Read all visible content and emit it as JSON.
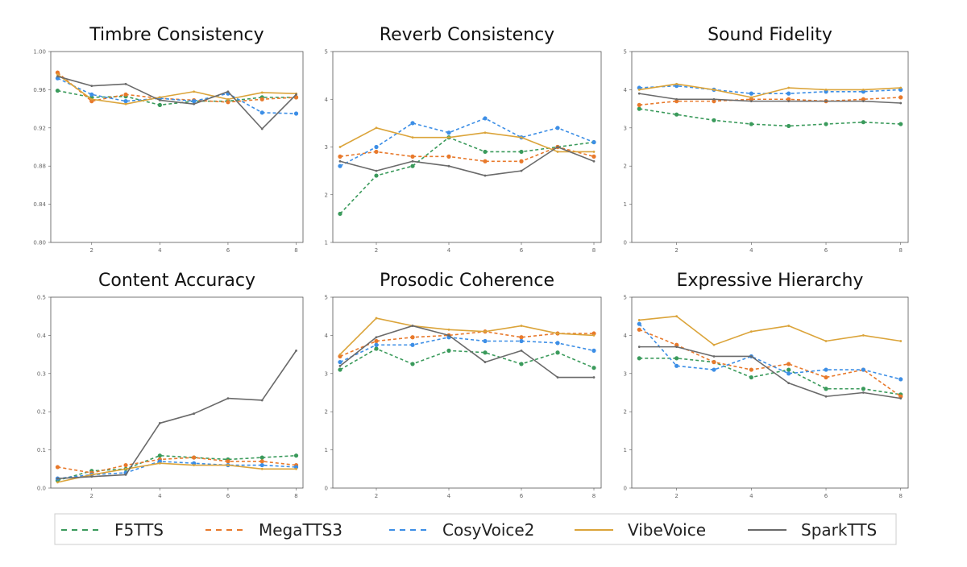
{
  "chart_data": [
    {
      "type": "line",
      "title": "Timbre Consistency",
      "ylim": [
        0.8,
        1.0
      ],
      "yticks": [
        "0.80",
        "0.84",
        "0.88",
        "0.92",
        "0.96",
        "1.00"
      ],
      "xlim": [
        0.8,
        8.2
      ],
      "xticks": [
        2,
        4,
        6,
        8
      ],
      "x": [
        1,
        2,
        3,
        4,
        5,
        6,
        7,
        8
      ],
      "series": [
        {
          "name": "F5TTS",
          "values": [
            0.959,
            0.952,
            0.953,
            0.944,
            0.948,
            0.948,
            0.952,
            0.952
          ]
        },
        {
          "name": "MegaTTS3",
          "values": [
            0.978,
            0.948,
            0.955,
            0.951,
            0.949,
            0.947,
            0.95,
            0.952
          ]
        },
        {
          "name": "CosyVoice2",
          "values": [
            0.972,
            0.955,
            0.948,
            0.951,
            0.948,
            0.956,
            0.936,
            0.935
          ]
        },
        {
          "name": "VibeVoice",
          "values": [
            0.976,
            0.95,
            0.945,
            0.952,
            0.958,
            0.95,
            0.957,
            0.956
          ]
        },
        {
          "name": "SparkTTS",
          "values": [
            0.974,
            0.964,
            0.966,
            0.949,
            0.945,
            0.958,
            0.919,
            0.955
          ]
        }
      ]
    },
    {
      "type": "line",
      "title": "Reverb Consistency",
      "ylim": [
        1,
        5
      ],
      "yticks": [
        "1",
        "2",
        "3",
        "4",
        "5"
      ],
      "xlim": [
        0.8,
        8.2
      ],
      "xticks": [
        2,
        4,
        6,
        8
      ],
      "x": [
        1,
        2,
        3,
        4,
        5,
        6,
        7,
        8
      ],
      "series": [
        {
          "name": "F5TTS",
          "values": [
            1.6,
            2.4,
            2.6,
            3.2,
            2.9,
            2.9,
            3.0,
            3.1
          ]
        },
        {
          "name": "MegaTTS3",
          "values": [
            2.8,
            2.9,
            2.8,
            2.8,
            2.7,
            2.7,
            3.0,
            2.8
          ]
        },
        {
          "name": "CosyVoice2",
          "values": [
            2.6,
            3.0,
            3.5,
            3.3,
            3.6,
            3.2,
            3.4,
            3.1
          ]
        },
        {
          "name": "VibeVoice",
          "values": [
            3.0,
            3.4,
            3.2,
            3.2,
            3.3,
            3.2,
            2.9,
            2.9
          ]
        },
        {
          "name": "SparkTTS",
          "values": [
            2.7,
            2.5,
            2.7,
            2.6,
            2.4,
            2.5,
            3.0,
            2.7
          ]
        }
      ]
    },
    {
      "type": "line",
      "title": "Sound Fidelity",
      "ylim": [
        0,
        5
      ],
      "yticks": [
        "0",
        "1",
        "2",
        "3",
        "4",
        "5"
      ],
      "xlim": [
        0.8,
        8.2
      ],
      "xticks": [
        2,
        4,
        6,
        8
      ],
      "x": [
        1,
        2,
        3,
        4,
        5,
        6,
        7,
        8
      ],
      "series": [
        {
          "name": "F5TTS",
          "values": [
            3.5,
            3.35,
            3.2,
            3.1,
            3.05,
            3.1,
            3.15,
            3.1
          ]
        },
        {
          "name": "MegaTTS3",
          "values": [
            3.6,
            3.7,
            3.7,
            3.75,
            3.75,
            3.7,
            3.75,
            3.8
          ]
        },
        {
          "name": "CosyVoice2",
          "values": [
            4.05,
            4.1,
            4.0,
            3.9,
            3.9,
            3.95,
            3.95,
            4.0
          ]
        },
        {
          "name": "VibeVoice",
          "values": [
            4.0,
            4.15,
            4.0,
            3.8,
            4.05,
            4.0,
            4.0,
            4.05
          ]
        },
        {
          "name": "SparkTTS",
          "values": [
            3.9,
            3.75,
            3.75,
            3.7,
            3.7,
            3.7,
            3.7,
            3.65
          ]
        }
      ]
    },
    {
      "type": "line",
      "title": "Content Accuracy",
      "ylim": [
        0.0,
        0.5
      ],
      "yticks": [
        "0.0",
        "0.1",
        "0.2",
        "0.3",
        "0.4",
        "0.5"
      ],
      "xlim": [
        0.8,
        8.2
      ],
      "xticks": [
        2,
        4,
        6,
        8
      ],
      "x": [
        1,
        2,
        3,
        4,
        5,
        6,
        7,
        8
      ],
      "series": [
        {
          "name": "F5TTS",
          "values": [
            0.02,
            0.045,
            0.05,
            0.085,
            0.08,
            0.075,
            0.08,
            0.085
          ]
        },
        {
          "name": "MegaTTS3",
          "values": [
            0.055,
            0.04,
            0.06,
            0.075,
            0.08,
            0.07,
            0.07,
            0.06
          ]
        },
        {
          "name": "CosyVoice2",
          "values": [
            0.025,
            0.035,
            0.04,
            0.07,
            0.065,
            0.06,
            0.06,
            0.055
          ]
        },
        {
          "name": "VibeVoice",
          "values": [
            0.015,
            0.035,
            0.05,
            0.065,
            0.06,
            0.06,
            0.05,
            0.05
          ]
        },
        {
          "name": "SparkTTS",
          "values": [
            0.025,
            0.03,
            0.035,
            0.17,
            0.195,
            0.235,
            0.23,
            0.36
          ]
        }
      ]
    },
    {
      "type": "line",
      "title": "Prosodic Coherence",
      "ylim": [
        0,
        5
      ],
      "yticks": [
        "0",
        "1",
        "2",
        "3",
        "4",
        "5"
      ],
      "xlim": [
        0.8,
        8.2
      ],
      "xticks": [
        2,
        4,
        6,
        8
      ],
      "x": [
        1,
        2,
        3,
        4,
        5,
        6,
        7,
        8
      ],
      "series": [
        {
          "name": "F5TTS",
          "values": [
            3.1,
            3.65,
            3.25,
            3.6,
            3.55,
            3.25,
            3.55,
            3.15
          ]
        },
        {
          "name": "MegaTTS3",
          "values": [
            3.45,
            3.85,
            3.95,
            4.0,
            4.1,
            3.95,
            4.05,
            4.05
          ]
        },
        {
          "name": "CosyVoice2",
          "values": [
            3.3,
            3.75,
            3.75,
            3.95,
            3.85,
            3.85,
            3.8,
            3.6
          ]
        },
        {
          "name": "VibeVoice",
          "values": [
            3.5,
            4.45,
            4.25,
            4.15,
            4.1,
            4.25,
            4.05,
            4.0
          ]
        },
        {
          "name": "SparkTTS",
          "values": [
            3.2,
            3.95,
            4.25,
            4.0,
            3.3,
            3.6,
            2.9,
            2.9
          ]
        }
      ]
    },
    {
      "type": "line",
      "title": "Expressive Hierarchy",
      "ylim": [
        0,
        5
      ],
      "yticks": [
        "0",
        "1",
        "2",
        "3",
        "4",
        "5"
      ],
      "xlim": [
        0.8,
        8.2
      ],
      "xticks": [
        2,
        4,
        6,
        8
      ],
      "x": [
        1,
        2,
        3,
        4,
        5,
        6,
        7,
        8
      ],
      "series": [
        {
          "name": "F5TTS",
          "values": [
            3.4,
            3.4,
            3.3,
            2.9,
            3.1,
            2.6,
            2.6,
            2.45
          ]
        },
        {
          "name": "MegaTTS3",
          "values": [
            4.15,
            3.75,
            3.3,
            3.1,
            3.25,
            2.9,
            3.1,
            2.4
          ]
        },
        {
          "name": "CosyVoice2",
          "values": [
            4.3,
            3.2,
            3.1,
            3.45,
            3.0,
            3.1,
            3.1,
            2.85
          ]
        },
        {
          "name": "VibeVoice",
          "values": [
            4.4,
            4.5,
            3.75,
            4.1,
            4.25,
            3.85,
            4.0,
            3.85
          ]
        },
        {
          "name": "SparkTTS",
          "values": [
            3.7,
            3.7,
            3.45,
            3.45,
            2.75,
            2.4,
            2.5,
            2.35
          ]
        }
      ]
    }
  ],
  "legend": {
    "placement": "bottom",
    "items": [
      {
        "name": "F5TTS",
        "color": "#3a9a5b",
        "style": "dashed",
        "marker": true
      },
      {
        "name": "MegaTTS3",
        "color": "#e8792b",
        "style": "dashed",
        "marker": true
      },
      {
        "name": "CosyVoice2",
        "color": "#3c8ee6",
        "style": "dashed",
        "marker": true
      },
      {
        "name": "VibeVoice",
        "color": "#dba43a",
        "style": "solid",
        "marker": false
      },
      {
        "name": "SparkTTS",
        "color": "#6a6a6a",
        "style": "solid",
        "marker": false
      }
    ]
  }
}
